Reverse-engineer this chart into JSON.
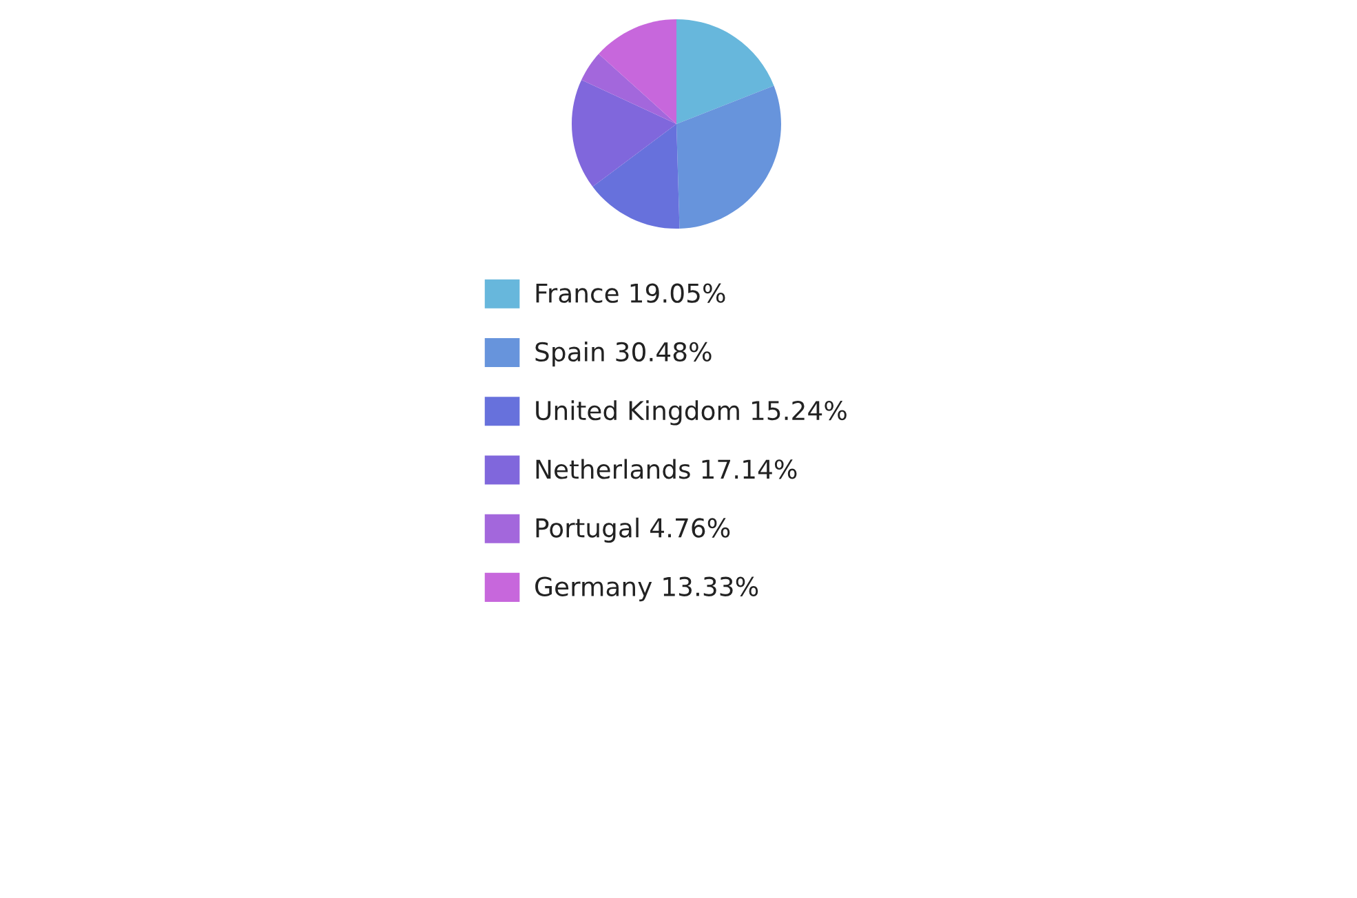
{
  "chart_data": {
    "type": "pie",
    "categories": [
      "France",
      "Spain",
      "United Kingdom",
      "Netherlands",
      "Portugal",
      "Germany"
    ],
    "values": [
      19.05,
      30.48,
      15.24,
      17.14,
      4.76,
      13.33
    ],
    "value_labels": [
      "19.05%",
      "30.48%",
      "15.24%",
      "17.14%",
      "4.76%",
      "13.33%"
    ],
    "colors": [
      "#67b7dc",
      "#6794dc",
      "#6771dc",
      "#8067dc",
      "#a367dc",
      "#c767dc"
    ],
    "legend": "bottom"
  }
}
